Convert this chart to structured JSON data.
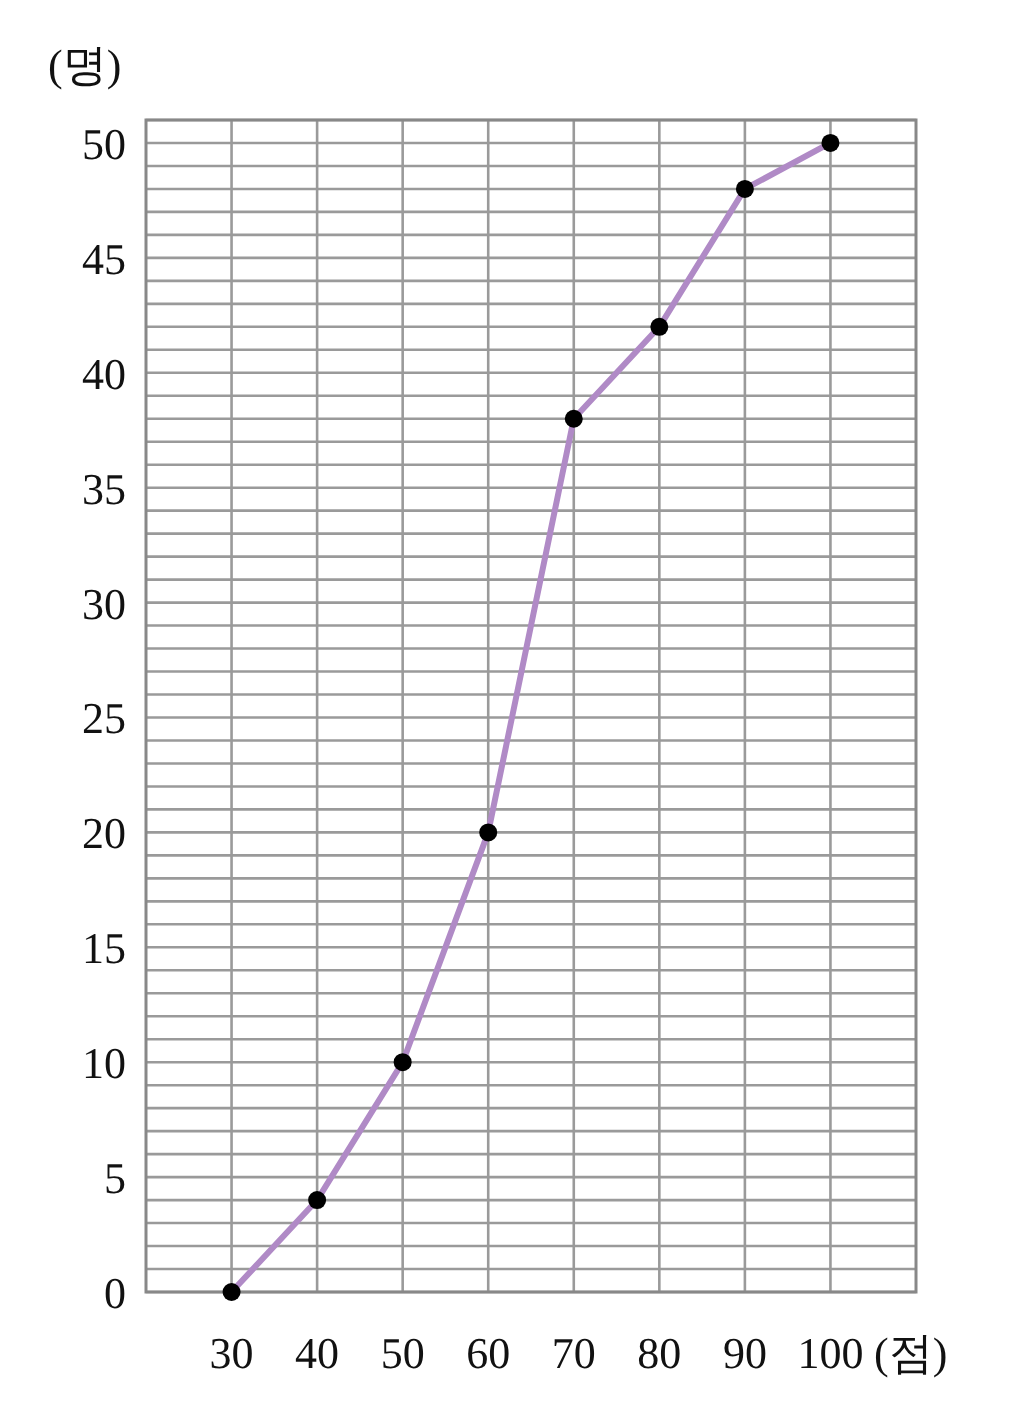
{
  "chart_data": {
    "type": "line",
    "xlabel": "(점)",
    "ylabel": "(명)",
    "x": [
      30,
      40,
      50,
      60,
      70,
      80,
      90,
      100
    ],
    "series": [
      {
        "color": "#b08ac6",
        "values": [
          0,
          4,
          10,
          20,
          38,
          42,
          48,
          50
        ]
      }
    ],
    "xlim": [
      20,
      110
    ],
    "ylim": [
      0,
      51
    ],
    "xticks": [
      30,
      40,
      50,
      60,
      70,
      80,
      90,
      100
    ],
    "yticks": [
      0,
      {
        "value": 1,
        "label": null
      },
      {
        "value": 2,
        "label": null
      },
      {
        "value": 3,
        "label": null
      },
      {
        "value": 4,
        "label": null
      },
      5,
      {
        "value": 6,
        "label": null
      },
      {
        "value": 7,
        "label": null
      },
      {
        "value": 8,
        "label": null
      },
      {
        "value": 9,
        "label": null
      },
      10,
      {
        "value": 11,
        "label": null
      },
      {
        "value": 12,
        "label": null
      },
      {
        "value": 13,
        "label": null
      },
      {
        "value": 14,
        "label": null
      },
      15,
      {
        "value": 16,
        "label": null
      },
      {
        "value": 17,
        "label": null
      },
      {
        "value": 18,
        "label": null
      },
      {
        "value": 19,
        "label": null
      },
      20,
      {
        "value": 21,
        "label": null
      },
      {
        "value": 22,
        "label": null
      },
      {
        "value": 23,
        "label": null
      },
      {
        "value": 24,
        "label": null
      },
      25,
      {
        "value": 26,
        "label": null
      },
      {
        "value": 27,
        "label": null
      },
      {
        "value": 28,
        "label": null
      },
      {
        "value": 29,
        "label": null
      },
      30,
      {
        "value": 31,
        "label": null
      },
      {
        "value": 32,
        "label": null
      },
      {
        "value": 33,
        "label": null
      },
      {
        "value": 34,
        "label": null
      },
      35,
      {
        "value": 36,
        "label": null
      },
      {
        "value": 37,
        "label": null
      },
      {
        "value": 38,
        "label": null
      },
      {
        "value": 39,
        "label": null
      },
      40,
      {
        "value": 41,
        "label": null
      },
      {
        "value": 42,
        "label": null
      },
      {
        "value": 43,
        "label": null
      },
      {
        "value": 44,
        "label": null
      },
      45,
      {
        "value": 46,
        "label": null
      },
      {
        "value": 47,
        "label": null
      },
      {
        "value": 48,
        "label": null
      },
      {
        "value": 49,
        "label": null
      },
      50,
      {
        "value": 51,
        "label": null
      }
    ],
    "grid": true,
    "marker": "circle"
  }
}
